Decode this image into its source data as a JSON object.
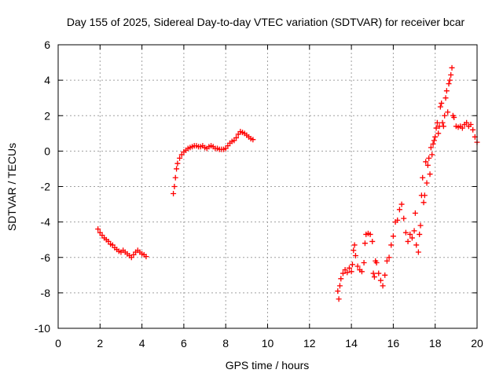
{
  "chart_data": {
    "type": "scatter",
    "title": "Day 155 of 2025, Sidereal Day-to-day VTEC variation (SDTVAR) for receiver bcar",
    "xlabel": "GPS time / hours",
    "ylabel": "SDTVAR / TECUs",
    "xlim": [
      0,
      20
    ],
    "ylim": [
      -10,
      6
    ],
    "xticks": [
      0,
      2,
      4,
      6,
      8,
      10,
      12,
      14,
      16,
      18,
      20
    ],
    "yticks": [
      -10,
      -8,
      -6,
      -4,
      -2,
      0,
      2,
      4,
      6
    ],
    "xtick_labels": [
      "0",
      "2",
      "4",
      "6",
      "8",
      "10",
      "12",
      "14",
      "16",
      "18",
      "20"
    ],
    "ytick_labels": [
      "-10",
      "-8",
      "-6",
      "-4",
      "-2",
      "0",
      "2",
      "4",
      "6"
    ],
    "grid": true,
    "legend": "none",
    "marker": "plus",
    "series": [
      {
        "name": "SDTVAR",
        "color": "#ff0000",
        "points": [
          [
            1.9,
            -4.4
          ],
          [
            2.0,
            -4.6
          ],
          [
            2.1,
            -4.75
          ],
          [
            2.2,
            -4.9
          ],
          [
            2.3,
            -5.0
          ],
          [
            2.4,
            -5.1
          ],
          [
            2.5,
            -5.25
          ],
          [
            2.6,
            -5.3
          ],
          [
            2.7,
            -5.45
          ],
          [
            2.8,
            -5.55
          ],
          [
            2.9,
            -5.65
          ],
          [
            3.0,
            -5.7
          ],
          [
            3.1,
            -5.6
          ],
          [
            3.2,
            -5.7
          ],
          [
            3.3,
            -5.8
          ],
          [
            3.4,
            -5.9
          ],
          [
            3.5,
            -6.0
          ],
          [
            3.6,
            -5.85
          ],
          [
            3.7,
            -5.7
          ],
          [
            3.8,
            -5.6
          ],
          [
            3.9,
            -5.7
          ],
          [
            4.0,
            -5.8
          ],
          [
            4.1,
            -5.85
          ],
          [
            4.2,
            -5.95
          ],
          [
            5.5,
            -2.4
          ],
          [
            5.55,
            -2.0
          ],
          [
            5.6,
            -1.5
          ],
          [
            5.65,
            -1.0
          ],
          [
            5.7,
            -0.7
          ],
          [
            5.8,
            -0.4
          ],
          [
            5.9,
            -0.2
          ],
          [
            6.0,
            -0.05
          ],
          [
            6.1,
            0.05
          ],
          [
            6.2,
            0.15
          ],
          [
            6.3,
            0.2
          ],
          [
            6.4,
            0.25
          ],
          [
            6.5,
            0.3
          ],
          [
            6.6,
            0.3
          ],
          [
            6.7,
            0.25
          ],
          [
            6.8,
            0.25
          ],
          [
            6.9,
            0.3
          ],
          [
            7.0,
            0.2
          ],
          [
            7.1,
            0.15
          ],
          [
            7.2,
            0.25
          ],
          [
            7.3,
            0.3
          ],
          [
            7.4,
            0.25
          ],
          [
            7.5,
            0.15
          ],
          [
            7.6,
            0.15
          ],
          [
            7.7,
            0.1
          ],
          [
            7.8,
            0.1
          ],
          [
            7.9,
            0.1
          ],
          [
            8.0,
            0.15
          ],
          [
            8.1,
            0.3
          ],
          [
            8.2,
            0.45
          ],
          [
            8.3,
            0.55
          ],
          [
            8.4,
            0.6
          ],
          [
            8.5,
            0.75
          ],
          [
            8.6,
            0.95
          ],
          [
            8.7,
            1.1
          ],
          [
            8.8,
            1.05
          ],
          [
            8.9,
            1.0
          ],
          [
            9.0,
            0.9
          ],
          [
            9.1,
            0.8
          ],
          [
            9.2,
            0.7
          ],
          [
            9.3,
            0.65
          ],
          [
            13.35,
            -7.9
          ],
          [
            13.4,
            -8.35
          ],
          [
            13.45,
            -7.6
          ],
          [
            13.5,
            -7.2
          ],
          [
            13.6,
            -6.9
          ],
          [
            13.7,
            -6.7
          ],
          [
            13.8,
            -6.85
          ],
          [
            13.9,
            -6.6
          ],
          [
            14.0,
            -6.8
          ],
          [
            14.05,
            -6.4
          ],
          [
            14.1,
            -5.6
          ],
          [
            14.15,
            -5.3
          ],
          [
            14.2,
            -5.9
          ],
          [
            14.3,
            -6.5
          ],
          [
            14.4,
            -6.7
          ],
          [
            14.5,
            -6.8
          ],
          [
            14.6,
            -6.3
          ],
          [
            14.65,
            -5.2
          ],
          [
            14.7,
            -4.7
          ],
          [
            14.8,
            -4.65
          ],
          [
            14.9,
            -4.7
          ],
          [
            15.0,
            -5.1
          ],
          [
            15.05,
            -6.9
          ],
          [
            15.1,
            -7.1
          ],
          [
            15.15,
            -6.2
          ],
          [
            15.2,
            -6.3
          ],
          [
            15.3,
            -6.9
          ],
          [
            15.4,
            -7.3
          ],
          [
            15.5,
            -7.6
          ],
          [
            15.6,
            -7.0
          ],
          [
            15.7,
            -6.2
          ],
          [
            15.8,
            -6.0
          ],
          [
            15.9,
            -5.3
          ],
          [
            16.0,
            -4.8
          ],
          [
            16.1,
            -4.0
          ],
          [
            16.2,
            -3.9
          ],
          [
            16.3,
            -3.3
          ],
          [
            16.4,
            -3.0
          ],
          [
            16.5,
            -3.8
          ],
          [
            16.6,
            -4.6
          ],
          [
            16.7,
            -5.1
          ],
          [
            16.8,
            -4.7
          ],
          [
            16.9,
            -4.9
          ],
          [
            17.0,
            -4.5
          ],
          [
            17.05,
            -3.5
          ],
          [
            17.1,
            -5.3
          ],
          [
            17.2,
            -5.7
          ],
          [
            17.25,
            -4.7
          ],
          [
            17.3,
            -4.2
          ],
          [
            17.35,
            -2.5
          ],
          [
            17.4,
            -1.5
          ],
          [
            17.45,
            -2.9
          ],
          [
            17.5,
            -2.5
          ],
          [
            17.55,
            -0.6
          ],
          [
            17.6,
            -1.8
          ],
          [
            17.65,
            -0.8
          ],
          [
            17.7,
            -0.4
          ],
          [
            17.75,
            -1.3
          ],
          [
            17.8,
            0.2
          ],
          [
            17.85,
            -0.2
          ],
          [
            17.9,
            0.4
          ],
          [
            17.95,
            0.6
          ],
          [
            18.0,
            0.8
          ],
          [
            18.05,
            1.3
          ],
          [
            18.1,
            1.6
          ],
          [
            18.15,
            1.0
          ],
          [
            18.2,
            1.4
          ],
          [
            18.25,
            2.5
          ],
          [
            18.3,
            2.7
          ],
          [
            18.35,
            1.6
          ],
          [
            18.4,
            1.4
          ],
          [
            18.45,
            2.0
          ],
          [
            18.5,
            3.0
          ],
          [
            18.55,
            3.4
          ],
          [
            18.6,
            2.2
          ],
          [
            18.65,
            3.8
          ],
          [
            18.7,
            4.0
          ],
          [
            18.75,
            4.3
          ],
          [
            18.8,
            4.7
          ],
          [
            18.85,
            2.0
          ],
          [
            18.9,
            1.9
          ],
          [
            19.0,
            1.4
          ],
          [
            19.1,
            1.35
          ],
          [
            19.2,
            1.4
          ],
          [
            19.3,
            1.3
          ],
          [
            19.4,
            1.5
          ],
          [
            19.5,
            1.6
          ],
          [
            19.6,
            1.4
          ],
          [
            19.7,
            1.5
          ],
          [
            19.8,
            1.2
          ],
          [
            19.9,
            0.8
          ],
          [
            20.0,
            0.5
          ]
        ]
      }
    ]
  }
}
